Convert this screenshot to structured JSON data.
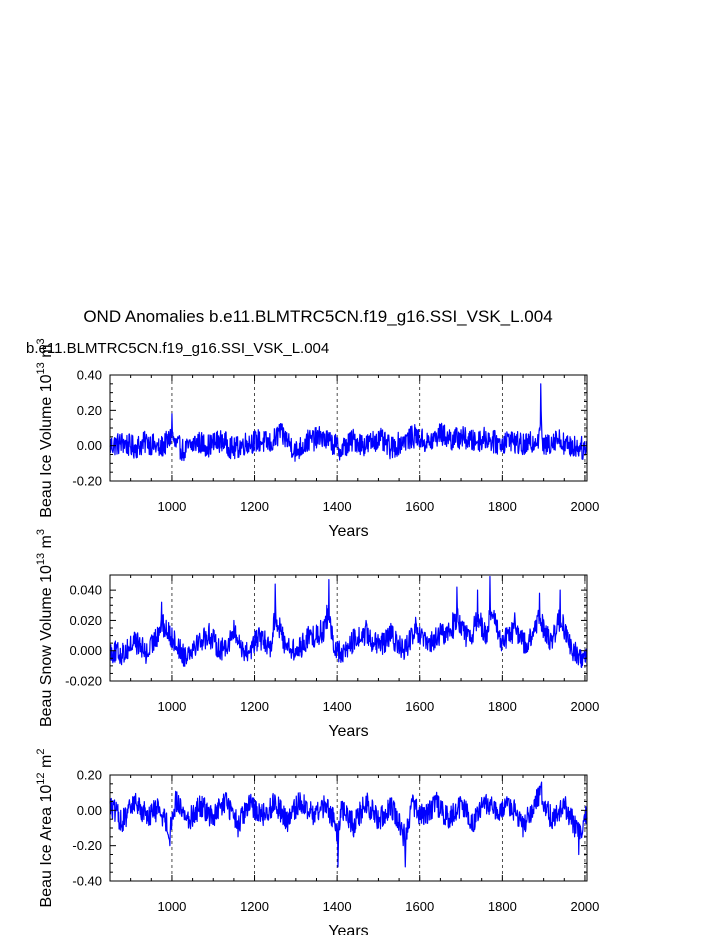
{
  "figure": {
    "title": "OND Anomalies b.e11.BLMTRC5CN.f19_g16.SSI_VSK_L.004",
    "subtitle": "b.e11.BLMTRC5CN.f19_g16.SSI_VSK_L.004",
    "subtitle_color": "#0000ff"
  },
  "chart_data": [
    {
      "type": "line",
      "ylabel": "Beau Ice Volume 10^13 m^3",
      "ylabel_parts": {
        "base": "Beau Ice Volume 10",
        "exp1": "13",
        "unit": " m",
        "exp2": "3"
      },
      "xlabel": "Years",
      "xlim": [
        850,
        2005
      ],
      "ylim": [
        -0.2,
        0.4
      ],
      "xticks": [
        1000,
        1200,
        1400,
        1600,
        1800,
        2000
      ],
      "xtick_labels": [
        "1000",
        "1200",
        "1400",
        "1600",
        "1800",
        "2000"
      ],
      "yticks": [
        -0.2,
        0.0,
        0.2,
        0.4
      ],
      "ytick_labels": [
        "-0.20",
        "0.00",
        "0.20",
        "0.40"
      ],
      "grid": "vertical dashed at major x ticks",
      "line_color": "#0000ff",
      "series": [
        {
          "x": [
            850,
            880,
            910,
            940,
            970,
            995,
            1000,
            1005,
            1030,
            1060,
            1090,
            1120,
            1150,
            1180,
            1210,
            1240,
            1260,
            1275,
            1300,
            1330,
            1360,
            1385,
            1410,
            1440,
            1470,
            1500,
            1530,
            1560,
            1590,
            1620,
            1650,
            1680,
            1700,
            1730,
            1760,
            1790,
            1820,
            1850,
            1880,
            1890,
            1893,
            1896,
            1900,
            1930,
            1960,
            1990,
            2005
          ],
          "y": [
            0.0,
            0.03,
            -0.02,
            0.04,
            -0.03,
            0.06,
            0.18,
            0.02,
            -0.05,
            0.04,
            0.0,
            0.06,
            -0.04,
            0.03,
            0.05,
            0.02,
            0.12,
            0.08,
            -0.06,
            0.05,
            0.08,
            0.03,
            -0.04,
            0.06,
            0.0,
            0.08,
            -0.03,
            0.05,
            0.1,
            0.02,
            0.12,
            0.06,
            0.09,
            0.04,
            0.08,
            0.02,
            0.06,
            0.0,
            0.04,
            0.1,
            0.35,
            0.05,
            -0.02,
            0.08,
            0.0,
            -0.02,
            -0.05
          ]
        }
      ]
    },
    {
      "type": "line",
      "ylabel": "Beau Snow Volume 10^13 m^3",
      "ylabel_parts": {
        "base": "Beau Snow Volume 10",
        "exp1": "13",
        "unit": " m",
        "exp2": "3"
      },
      "xlabel": "Years",
      "xlim": [
        850,
        2005
      ],
      "ylim": [
        -0.02,
        0.05
      ],
      "xticks": [
        1000,
        1200,
        1400,
        1600,
        1800,
        2000
      ],
      "xtick_labels": [
        "1000",
        "1200",
        "1400",
        "1600",
        "1800",
        "2000"
      ],
      "yticks": [
        -0.02,
        0.0,
        0.02,
        0.04
      ],
      "ytick_labels": [
        "-0.020",
        "0.000",
        "0.020",
        "0.040"
      ],
      "grid": "vertical dashed at major x ticks",
      "line_color": "#0000ff",
      "series": [
        {
          "x": [
            850,
            880,
            910,
            940,
            960,
            975,
            1000,
            1030,
            1060,
            1090,
            1120,
            1150,
            1180,
            1210,
            1240,
            1250,
            1270,
            1300,
            1330,
            1360,
            1375,
            1380,
            1390,
            1410,
            1440,
            1470,
            1500,
            1530,
            1560,
            1590,
            1620,
            1650,
            1680,
            1690,
            1720,
            1740,
            1765,
            1770,
            1800,
            1830,
            1860,
            1890,
            1920,
            1940,
            1970,
            2005
          ],
          "y": [
            0.0,
            -0.005,
            0.012,
            -0.004,
            0.014,
            0.032,
            0.015,
            -0.006,
            0.01,
            0.018,
            0.0,
            0.02,
            -0.004,
            0.015,
            0.005,
            0.044,
            0.012,
            -0.003,
            0.016,
            0.02,
            0.03,
            0.047,
            0.01,
            -0.006,
            0.012,
            0.02,
            0.005,
            0.018,
            0.0,
            0.022,
            0.006,
            0.018,
            0.025,
            0.042,
            0.01,
            0.04,
            0.016,
            0.049,
            0.01,
            0.025,
            0.005,
            0.038,
            0.01,
            0.04,
            -0.002,
            -0.01
          ]
        }
      ]
    },
    {
      "type": "line",
      "ylabel": "Beau Ice Area 10^12 m^2",
      "ylabel_parts": {
        "base": "Beau Ice Area 10",
        "exp1": "12",
        "unit": " m",
        "exp2": "2"
      },
      "xlabel": "Years",
      "xlim": [
        850,
        2005
      ],
      "ylim": [
        -0.4,
        0.2
      ],
      "xticks": [
        1000,
        1200,
        1400,
        1600,
        1800,
        2000
      ],
      "xtick_labels": [
        "1000",
        "1200",
        "1400",
        "1600",
        "1800",
        "2000"
      ],
      "yticks": [
        -0.4,
        -0.2,
        0.0,
        0.2
      ],
      "ytick_labels": [
        "-0.40",
        "-0.20",
        "0.00",
        "0.20"
      ],
      "grid": "vertical dashed at major x ticks",
      "line_color": "#0000ff",
      "series": [
        {
          "x": [
            850,
            880,
            910,
            940,
            970,
            995,
            1010,
            1040,
            1070,
            1100,
            1130,
            1160,
            1190,
            1220,
            1250,
            1280,
            1310,
            1340,
            1370,
            1395,
            1402,
            1410,
            1440,
            1470,
            1500,
            1530,
            1560,
            1565,
            1580,
            1610,
            1640,
            1670,
            1700,
            1730,
            1760,
            1790,
            1820,
            1850,
            1880,
            1895,
            1920,
            1950,
            1975,
            1985,
            2005
          ],
          "y": [
            0.05,
            -0.12,
            0.08,
            -0.05,
            0.02,
            -0.2,
            0.1,
            -0.1,
            0.05,
            -0.08,
            0.1,
            -0.15,
            0.06,
            -0.05,
            0.08,
            -0.12,
            0.1,
            -0.05,
            0.05,
            -0.1,
            -0.32,
            0.05,
            -0.15,
            0.08,
            -0.1,
            0.05,
            -0.2,
            -0.32,
            0.06,
            -0.08,
            0.08,
            -0.1,
            0.05,
            -0.12,
            0.08,
            -0.05,
            0.06,
            -0.15,
            0.08,
            0.16,
            -0.1,
            0.05,
            -0.15,
            -0.25,
            -0.05
          ]
        }
      ]
    }
  ]
}
